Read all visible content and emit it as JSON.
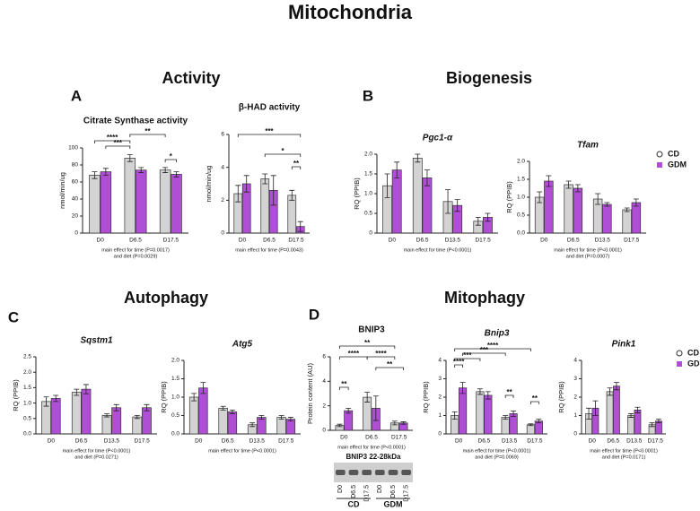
{
  "page": {
    "title": "Mitochondria",
    "sections": [
      "Activity",
      "Biogenesis",
      "Autophagy",
      "Mitophagy"
    ],
    "letters": [
      "A",
      "B",
      "C",
      "D"
    ]
  },
  "chart_data": [
    {
      "type": "bar",
      "title": "Citrate Synthase activity",
      "ylabel": "nmol/min/ug",
      "categories": [
        "D0",
        "D6.5",
        "D17.5"
      ],
      "series": [
        {
          "name": "CD",
          "color": "#d3d3d3",
          "values": [
            68,
            88,
            74
          ],
          "errors": [
            4,
            4,
            3
          ]
        },
        {
          "name": "GDM",
          "color": "#b04fd6",
          "values": [
            72,
            74,
            69
          ],
          "errors": [
            4,
            3,
            3
          ]
        }
      ],
      "ylim": [
        0,
        100
      ],
      "yticks": [
        0,
        20,
        40,
        60,
        80,
        100
      ],
      "annotations": [
        "****",
        "***",
        "**",
        "*"
      ],
      "note": [
        "main effect for time (P=0.0017)",
        "and diet (P=0.0029)"
      ]
    },
    {
      "type": "bar",
      "title": "β-HAD activity",
      "ylabel": "nmol/min/ug",
      "categories": [
        "D0",
        "D6.5",
        "D17.5"
      ],
      "series": [
        {
          "name": "CD",
          "color": "#d3d3d3",
          "values": [
            2.4,
            3.3,
            2.3
          ],
          "errors": [
            0.5,
            0.3,
            0.3
          ]
        },
        {
          "name": "GDM",
          "color": "#b04fd6",
          "values": [
            3.0,
            2.6,
            0.4
          ],
          "errors": [
            0.5,
            0.9,
            0.3
          ]
        }
      ],
      "ylim": [
        0,
        6
      ],
      "yticks": [
        0,
        2,
        4,
        6
      ],
      "annotations": [
        "***",
        "*",
        "**"
      ],
      "note": [
        "main effect for time (P=0.0043)"
      ]
    },
    {
      "type": "bar",
      "title": "Pgc1-α",
      "ylabel": "RQ (PPIB)",
      "categories": [
        "D0",
        "D6.5",
        "D13.5",
        "D17.5"
      ],
      "series": [
        {
          "name": "CD",
          "color": "#d3d3d3",
          "values": [
            1.2,
            1.9,
            0.8,
            0.3
          ],
          "errors": [
            0.3,
            0.1,
            0.3,
            0.1
          ]
        },
        {
          "name": "GDM",
          "color": "#b04fd6",
          "values": [
            1.6,
            1.4,
            0.7,
            0.4
          ],
          "errors": [
            0.2,
            0.2,
            0.15,
            0.1
          ]
        }
      ],
      "ylim": [
        0,
        2
      ],
      "yticks": [
        0,
        0.5,
        {
          "value": 1,
          "label": "1.0"
        },
        1.5,
        {
          "value": 2,
          "label": "2.0"
        }
      ],
      "note": [
        "main effect for time (P<0.0001)"
      ]
    },
    {
      "type": "bar",
      "title": "Tfam",
      "ylabel": "RQ (PPIB)",
      "categories": [
        "D0",
        "D6.5",
        "D13.5",
        "D17.5"
      ],
      "series": [
        {
          "name": "CD",
          "color": "#d3d3d3",
          "values": [
            1.0,
            1.35,
            0.95,
            0.65
          ],
          "errors": [
            0.15,
            0.1,
            0.15,
            0.05
          ]
        },
        {
          "name": "GDM",
          "color": "#b04fd6",
          "values": [
            1.45,
            1.25,
            0.8,
            0.85
          ],
          "errors": [
            0.15,
            0.1,
            0.05,
            0.1
          ]
        }
      ],
      "ylim": [
        0,
        2
      ],
      "yticks": [
        {
          "value": 0,
          "label": "0.0"
        },
        0.5,
        {
          "value": 1,
          "label": "1.0"
        },
        1.5,
        {
          "value": 2,
          "label": "2.0"
        }
      ],
      "legend": "right",
      "note": [
        "main effect for time (P<0.0001)",
        "and diet (P=0.0007)"
      ]
    },
    {
      "type": "bar",
      "title": "Sqstm1",
      "ylabel": "RQ (PPIB)",
      "categories": [
        "D0",
        "D6.5",
        "D13.5",
        "D17.5"
      ],
      "series": [
        {
          "name": "CD",
          "color": "#d3d3d3",
          "values": [
            1.05,
            1.35,
            0.6,
            0.55
          ],
          "errors": [
            0.15,
            0.1,
            0.05,
            0.05
          ]
        },
        {
          "name": "GDM",
          "color": "#b04fd6",
          "values": [
            1.15,
            1.45,
            0.85,
            0.85
          ],
          "errors": [
            0.1,
            0.15,
            0.1,
            0.1
          ]
        }
      ],
      "ylim": [
        0,
        2.5
      ],
      "yticks": [
        {
          "value": 0,
          "label": "0.0"
        },
        0.5,
        {
          "value": 1,
          "label": "1.0"
        },
        1.5,
        {
          "value": 2,
          "label": "2.0"
        },
        2.5
      ],
      "note": [
        "main effect for time (P<0.0001)",
        "and diet (P=0.0271)"
      ]
    },
    {
      "type": "bar",
      "title": "Atg5",
      "ylabel": "RQ (PPIB)",
      "categories": [
        "D0",
        "D6.5",
        "D13.5",
        "D17.5"
      ],
      "series": [
        {
          "name": "CD",
          "color": "#d3d3d3",
          "values": [
            1.0,
            0.7,
            0.25,
            0.45
          ],
          "errors": [
            0.1,
            0.05,
            0.05,
            0.05
          ]
        },
        {
          "name": "GDM",
          "color": "#b04fd6",
          "values": [
            1.25,
            0.6,
            0.45,
            0.4
          ],
          "errors": [
            0.15,
            0.05,
            0.05,
            0.05
          ]
        }
      ],
      "ylim": [
        0,
        2
      ],
      "yticks": [
        {
          "value": 0,
          "label": "0.0"
        },
        0.5,
        {
          "value": 1,
          "label": "1.0"
        },
        1.5,
        {
          "value": 2,
          "label": "2.0"
        }
      ],
      "note": [
        "main effect for time (P<0.0001)"
      ]
    },
    {
      "type": "bar",
      "title": "BNIP3",
      "ylabel": "Protein content (AU)",
      "categories": [
        "D0",
        "D6.5",
        "D17.5"
      ],
      "series": [
        {
          "name": "CD",
          "color": "#d3d3d3",
          "values": [
            0.4,
            2.7,
            0.6
          ],
          "errors": [
            0.1,
            0.4,
            0.15
          ]
        },
        {
          "name": "GDM",
          "color": "#b04fd6",
          "values": [
            1.6,
            1.8,
            0.6
          ],
          "errors": [
            0.2,
            1.0,
            0.1
          ]
        }
      ],
      "ylim": [
        0,
        6
      ],
      "yticks": [
        0,
        2,
        4,
        6
      ],
      "annotations": [
        "**",
        "****",
        "****",
        "**",
        "**"
      ],
      "note": [
        "main effect for time (P<0.0001)"
      ]
    },
    {
      "type": "bar",
      "title": "Bnip3",
      "ylabel": "RQ (PPIB)",
      "categories": [
        "D0",
        "D6.5",
        "D13.5",
        "D17.5"
      ],
      "series": [
        {
          "name": "CD",
          "color": "#d3d3d3",
          "values": [
            1.0,
            2.3,
            0.9,
            0.5
          ],
          "errors": [
            0.2,
            0.15,
            0.1,
            0.05
          ]
        },
        {
          "name": "GDM",
          "color": "#b04fd6",
          "values": [
            2.5,
            2.1,
            1.1,
            0.7
          ],
          "errors": [
            0.3,
            0.2,
            0.15,
            0.1
          ]
        }
      ],
      "ylim": [
        0,
        4
      ],
      "yticks": [
        0,
        1,
        2,
        3,
        4
      ],
      "annotations": [
        "****",
        "***",
        "***",
        "****",
        "**",
        "**"
      ],
      "note": [
        "main effect for time (P<0.0001)",
        "and diet (P=0.0069)"
      ]
    },
    {
      "type": "bar",
      "title": "Pink1",
      "ylabel": "RQ (PPIB)",
      "categories": [
        "D0",
        "D6.5",
        "D13.5",
        "D17.5"
      ],
      "series": [
        {
          "name": "CD",
          "color": "#d3d3d3",
          "values": [
            1.1,
            2.3,
            1.0,
            0.5
          ],
          "errors": [
            0.3,
            0.2,
            0.1,
            0.1
          ]
        },
        {
          "name": "GDM",
          "color": "#b04fd6",
          "values": [
            1.4,
            2.6,
            1.3,
            0.7
          ],
          "errors": [
            0.4,
            0.2,
            0.15,
            0.1
          ]
        }
      ],
      "ylim": [
        0,
        4
      ],
      "yticks": [
        0,
        1,
        2,
        3,
        4
      ],
      "legend": "right",
      "note": [
        "main effect for time (P<0.0001)",
        "and diet (P=0.0171)"
      ]
    }
  ],
  "blot": {
    "label": "BNIP3 22-28kDa",
    "lanes": [
      "D0",
      "D6.5",
      "D17.5",
      "D0",
      "D6.5",
      "D17.5"
    ],
    "groups": [
      "CD",
      "GDM"
    ]
  }
}
